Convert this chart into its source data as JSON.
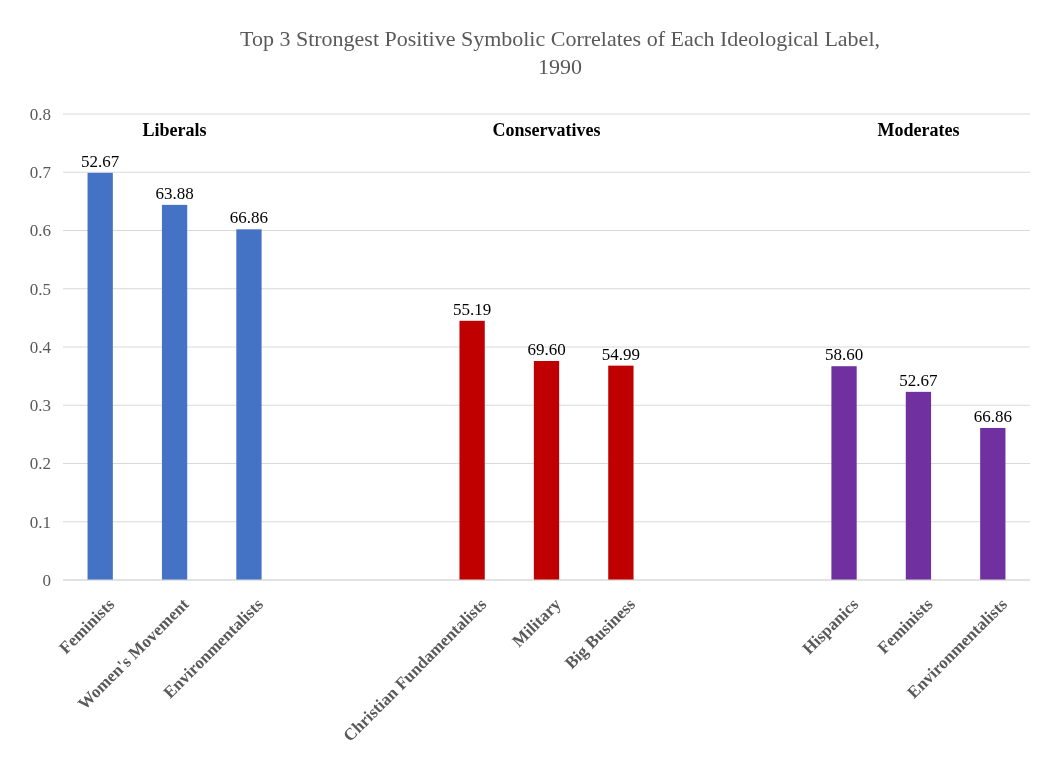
{
  "chart_data": {
    "type": "bar",
    "title": "Top 3 Strongest Positive Symbolic Correlates of Each Ideological Label, 1990",
    "categories": [
      "Feminists",
      "Women's Movement",
      "Environmentalists",
      null,
      null,
      "Christian Fundamentalists",
      "Military",
      "Big Business",
      null,
      null,
      "Hispanics",
      "Feminists",
      "Environmentalists"
    ],
    "values": [
      0.699,
      0.644,
      0.602,
      null,
      null,
      0.445,
      0.376,
      0.368,
      null,
      null,
      0.367,
      0.323,
      0.261
    ],
    "colors": [
      "#4472c4",
      "#4472c4",
      "#4472c4",
      null,
      null,
      "#c00000",
      "#c00000",
      "#c00000",
      null,
      null,
      "#7030a0",
      "#7030a0",
      "#7030a0"
    ],
    "annotations": [
      "Liberals",
      "Conservatives",
      "Moderates",
      {
        "text": "52.67",
        "x": "Feminists",
        "y": 0.699
      },
      {
        "text": "63.88",
        "x": "Women's Movement",
        "y": 0.644
      },
      {
        "text": "66.86",
        "x": "Environmentalists",
        "y": 0.602
      },
      {
        "text": "55.19",
        "x": "Christian Fundamentalists",
        "y": 0.445
      },
      {
        "text": "69.60",
        "x": "Military",
        "y": 0.376
      },
      {
        "text": "54.99",
        "x": "Big Business",
        "y": 0.368
      },
      {
        "text": "58.60",
        "x": "Hispanics",
        "y": 0.367
      },
      "52.67",
      "66.86"
    ],
    "ylim": [
      0,
      0.8
    ],
    "yticks": [
      0,
      0.1,
      0.2,
      0.3,
      0.4,
      0.5,
      0.6,
      0.7,
      0.8
    ],
    "grid": "y"
  }
}
